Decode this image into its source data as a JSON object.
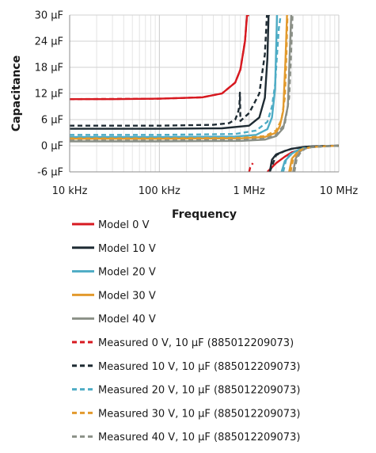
{
  "chart_data": {
    "type": "line",
    "xlabel": "Frequency",
    "ylabel": "Capacitance",
    "xscale": "log",
    "xlim": [
      10000,
      10000000
    ],
    "ylim": [
      -6,
      30
    ],
    "grid": true,
    "legend_position": "bottom",
    "x_ticks": [
      {
        "value": 10000,
        "label": "10 kHz"
      },
      {
        "value": 100000,
        "label": "100 kHz"
      },
      {
        "value": 1000000,
        "label": "1 MHz"
      },
      {
        "value": 10000000,
        "label": "10 MHz"
      }
    ],
    "y_ticks": [
      {
        "value": -6,
        "label": "-6 µF"
      },
      {
        "value": 0,
        "label": "0 µF"
      },
      {
        "value": 6,
        "label": "6 µF"
      },
      {
        "value": 12,
        "label": "12 µF"
      },
      {
        "value": 18,
        "label": "18 µF"
      },
      {
        "value": 24,
        "label": "24 µF"
      },
      {
        "value": 30,
        "label": "30 µF"
      }
    ],
    "series": [
      {
        "name": "Model 0 V",
        "color": "#d71920",
        "dash": false,
        "x": [
          10000,
          30000,
          100000,
          300000,
          500000,
          700000,
          800000,
          900000,
          950000,
          1000000
        ],
        "y": [
          10.7,
          10.7,
          10.8,
          11.1,
          12.0,
          14.5,
          17.5,
          24.0,
          30,
          30
        ],
        "x2": [
          1600000,
          2000000,
          2500000,
          3000000,
          4000000,
          5000000,
          7000000,
          10000000
        ],
        "y2": [
          -6,
          -4.0,
          -2.5,
          -1.5,
          -0.7,
          -0.3,
          -0.1,
          0
        ]
      },
      {
        "name": "Model 10 V",
        "color": "#1e2b33",
        "dash": false,
        "x": [
          10000,
          100000,
          500000,
          1000000,
          1300000,
          1500000,
          1600000,
          1650000,
          1700000
        ],
        "y": [
          3.9,
          3.9,
          4.0,
          4.6,
          6.5,
          11.0,
          20.0,
          30,
          30
        ],
        "x2": [
          1700000,
          1800000,
          2000000,
          2500000,
          3000000,
          4000000,
          5000000,
          7000000,
          10000000
        ],
        "y2": [
          -6,
          -3.2,
          -2.0,
          -1.2,
          -0.7,
          -0.3,
          -0.15,
          -0.05,
          0
        ]
      },
      {
        "name": "Model 20 V",
        "color": "#4eacc5",
        "dash": false,
        "x": [
          10000,
          100000,
          700000,
          1200000,
          1600000,
          1800000,
          1950000,
          2050000,
          2100000
        ],
        "y": [
          2.0,
          2.0,
          2.1,
          2.5,
          3.8,
          6.5,
          13.0,
          30,
          30
        ],
        "x2": [
          2300000,
          2500000,
          3000000,
          3500000,
          4000000,
          5000000,
          7000000,
          10000000
        ],
        "y2": [
          -6,
          -3.5,
          -1.8,
          -1.0,
          -0.6,
          -0.3,
          -0.1,
          0
        ]
      },
      {
        "name": "Model 30 V",
        "color": "#e29a2d",
        "dash": false,
        "x": [
          10000,
          100000,
          800000,
          1500000,
          2000000,
          2200000,
          2400000,
          2550000,
          2650000
        ],
        "y": [
          1.6,
          1.6,
          1.7,
          2.0,
          3.0,
          4.5,
          8.0,
          20.0,
          30
        ],
        "x2": [
          2800000,
          3000000,
          3500000,
          4000000,
          5000000,
          7000000,
          10000000
        ],
        "y2": [
          -6,
          -3.0,
          -1.3,
          -0.7,
          -0.3,
          -0.1,
          0
        ]
      },
      {
        "name": "Model 40 V",
        "color": "#8a8f86",
        "dash": false,
        "x": [
          10000,
          100000,
          800000,
          1500000,
          2000000,
          2400000,
          2700000,
          2850000,
          2950000
        ],
        "y": [
          1.0,
          1.0,
          1.1,
          1.4,
          2.2,
          4.0,
          9.0,
          22.0,
          30
        ],
        "x2": [
          3100000,
          3300000,
          3700000,
          4200000,
          5000000,
          7000000,
          10000000
        ],
        "y2": [
          -6,
          -3.0,
          -1.3,
          -0.6,
          -0.3,
          -0.1,
          0
        ]
      },
      {
        "name": "Measured 0 V, 10 µF (885012209073)",
        "color": "#d71920",
        "dash": true,
        "x": [
          10000,
          100000,
          300000,
          500000,
          700000,
          800000,
          900000,
          950000,
          980000,
          1000000
        ],
        "y": [
          10.7,
          10.8,
          11.1,
          12.0,
          14.5,
          17.5,
          24.0,
          30,
          30,
          30
        ],
        "x2": [
          1000000,
          1030000,
          1100000
        ],
        "y2": [
          -6,
          -5.0,
          -4.0
        ]
      },
      {
        "name": "Measured 10 V, 10 µF (885012209073)",
        "color": "#1e2b33",
        "dash": true,
        "x": [
          10000,
          100000,
          400000,
          600000,
          700000,
          750000,
          780000,
          790000,
          800000,
          1000000,
          1300000,
          1500000,
          1580000,
          1620000
        ],
        "y": [
          4.6,
          4.6,
          4.8,
          5.2,
          6.0,
          7.5,
          9.0,
          12.2,
          5.7,
          7.5,
          12.0,
          21.0,
          30,
          30
        ],
        "x2": [
          1700000,
          2000000,
          2500000,
          3000000,
          4000000,
          5000000,
          7000000,
          10000000
        ],
        "y2": [
          -6,
          -2.2,
          -1.2,
          -0.7,
          -0.3,
          -0.15,
          -0.05,
          0
        ]
      },
      {
        "name": "Measured 20 V, 10 µF (885012209073)",
        "color": "#4eacc5",
        "dash": true,
        "x": [
          10000,
          100000,
          700000,
          1200000,
          1600000,
          1800000,
          1950000,
          2050000,
          2150000,
          2250000
        ],
        "y": [
          2.5,
          2.5,
          2.7,
          3.5,
          5.5,
          9.0,
          14.0,
          21.0,
          27.0,
          30
        ],
        "x2": [
          2400000,
          2600000,
          3000000,
          4000000,
          5000000,
          7000000,
          10000000
        ],
        "y2": [
          -6,
          -3.0,
          -1.6,
          -0.6,
          -0.3,
          -0.1,
          0
        ]
      },
      {
        "name": "Measured 30 V, 10 µF (885012209073)",
        "color": "#e29a2d",
        "dash": true,
        "x": [
          10000,
          100000,
          800000,
          1500000,
          2000000,
          2300000,
          2500000,
          2600000,
          2680000
        ],
        "y": [
          1.7,
          1.7,
          1.8,
          2.2,
          3.5,
          6.0,
          11.0,
          20.0,
          30
        ],
        "x2": [
          2900000,
          3100000,
          3500000,
          4000000,
          5000000,
          7000000,
          10000000
        ],
        "y2": [
          -6,
          -3.0,
          -1.5,
          -0.7,
          -0.3,
          -0.1,
          0
        ]
      },
      {
        "name": "Measured 40 V, 10 µF (885012209073)",
        "color": "#8a8f86",
        "dash": true,
        "x": [
          10000,
          100000,
          800000,
          1500000,
          2000000,
          2500000,
          2800000,
          2950000,
          3050000
        ],
        "y": [
          1.2,
          1.2,
          1.3,
          1.6,
          2.5,
          5.0,
          11.0,
          22.0,
          30
        ],
        "x2": [
          3200000,
          3400000,
          3800000,
          4300000,
          5000000,
          7000000,
          10000000
        ],
        "y2": [
          -6,
          -3.0,
          -1.3,
          -0.6,
          -0.3,
          -0.1,
          0
        ]
      }
    ]
  }
}
